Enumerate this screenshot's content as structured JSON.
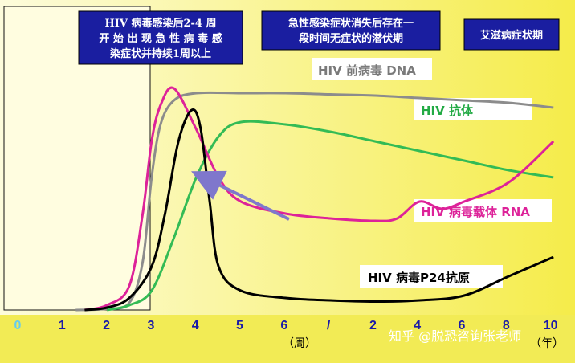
{
  "chart_data": {
    "type": "line",
    "title": "",
    "phases": [
      {
        "lines": [
          "HIV 病毒感染后2-4 周",
          "开 始 出 现 急 性 病 毒 感",
          "染症状并持续1周以上"
        ]
      },
      {
        "lines": [
          "急性感染症状消失后存在一",
          "段时间无症状的潜伏期"
        ]
      },
      {
        "lines": [
          "艾滋病症状期"
        ]
      }
    ],
    "x_ticks": [
      "0",
      "1",
      "2",
      "3",
      "4",
      "5",
      "6",
      "/",
      "2",
      "4",
      "6",
      "8",
      "10"
    ],
    "x_ticks_colored": {
      "0": "#66ccee",
      "1": "#1a1aa8",
      "3": "#1a1aa8",
      "default": "#1a1aa8"
    },
    "x_unit_weeks": "（周）",
    "x_unit_years": "（年）",
    "series": [
      {
        "name": "HIV 前病毒 DNA",
        "color": "#8c8c8c",
        "points": [
          [
            1.3,
            0
          ],
          [
            2,
            0.5
          ],
          [
            2.5,
            3
          ],
          [
            2.8,
            20
          ],
          [
            3.0,
            55
          ],
          [
            3.2,
            77
          ],
          [
            3.5,
            87
          ],
          [
            4,
            90
          ],
          [
            5,
            90
          ],
          [
            6,
            90
          ],
          [
            7,
            89.5
          ],
          [
            8,
            89
          ],
          [
            9,
            88
          ],
          [
            10,
            87
          ],
          [
            11,
            86
          ],
          [
            12,
            84
          ]
        ]
      },
      {
        "name": "HIV 抗体",
        "color": "#33bb55",
        "points": [
          [
            2,
            0
          ],
          [
            2.5,
            2
          ],
          [
            3,
            8
          ],
          [
            3.5,
            30
          ],
          [
            4,
            55
          ],
          [
            4.5,
            72
          ],
          [
            5,
            78
          ],
          [
            6,
            77
          ],
          [
            7,
            74
          ],
          [
            8,
            70
          ],
          [
            9,
            66
          ],
          [
            10,
            62
          ],
          [
            11,
            58
          ],
          [
            12,
            55
          ]
        ]
      },
      {
        "name": "HIV 病毒载体 RNA",
        "color": "#dd2299",
        "points": [
          [
            1.5,
            0
          ],
          [
            2,
            2
          ],
          [
            2.5,
            10
          ],
          [
            2.8,
            40
          ],
          [
            3.0,
            70
          ],
          [
            3.2,
            85
          ],
          [
            3.5,
            92
          ],
          [
            4,
            75
          ],
          [
            4.5,
            55
          ],
          [
            5,
            45
          ],
          [
            6,
            40
          ],
          [
            7,
            38
          ],
          [
            8,
            37
          ],
          [
            8.5,
            38
          ],
          [
            9,
            45
          ],
          [
            9.5,
            42
          ],
          [
            10,
            45
          ],
          [
            11,
            53
          ],
          [
            12,
            70
          ]
        ]
      },
      {
        "name": "HIV 病毒P24抗原",
        "color": "#000000",
        "points": [
          [
            1.5,
            0
          ],
          [
            2,
            1
          ],
          [
            2.5,
            5
          ],
          [
            3,
            18
          ],
          [
            3.3,
            40
          ],
          [
            3.6,
            70
          ],
          [
            3.9,
            83
          ],
          [
            4.1,
            75
          ],
          [
            4.3,
            45
          ],
          [
            4.5,
            18
          ],
          [
            5,
            8
          ],
          [
            6,
            5
          ],
          [
            7,
            4
          ],
          [
            8,
            3.5
          ],
          [
            9,
            4
          ],
          [
            10,
            6
          ],
          [
            11,
            14
          ],
          [
            12,
            22
          ]
        ]
      }
    ],
    "annotations": [
      {
        "type": "arrow",
        "color": "#7f77cc"
      }
    ],
    "ylim": [
      0,
      100
    ],
    "xlim": [
      0,
      12
    ]
  },
  "watermark": "知乎 @脱恐咨询张老师"
}
